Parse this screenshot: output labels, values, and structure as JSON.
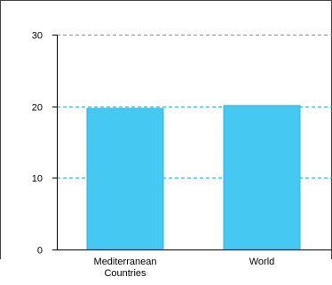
{
  "chart_data": {
    "type": "bar",
    "categories": [
      "Mediterranean Countries",
      "World"
    ],
    "category_lines": [
      [
        "Mediterranean",
        "Countries"
      ],
      [
        "World"
      ]
    ],
    "values": [
      19.7,
      20.1
    ],
    "ylim": [
      0,
      30
    ],
    "yticks": [
      0,
      10,
      20,
      30
    ],
    "grid": true,
    "grid_style": "dashed",
    "colors": {
      "bar": "#45c8f2",
      "bar_edge": "#2fb3e0",
      "grid": "#2ab0d8",
      "axis": "#000000",
      "frame": "#444444"
    }
  }
}
